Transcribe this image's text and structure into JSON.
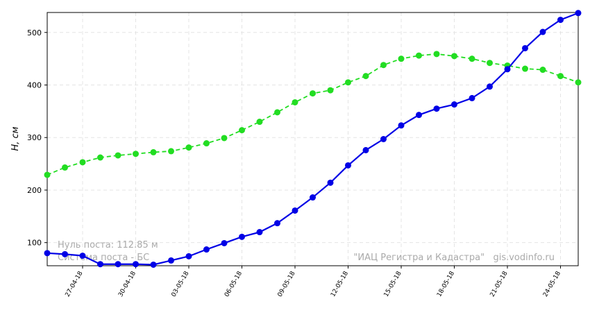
{
  "chart_data": {
    "type": "line",
    "ylabel": "H, см",
    "categories": [
      null,
      null,
      "27-04-18",
      null,
      null,
      "30-04-18",
      null,
      null,
      "03-05-18",
      null,
      null,
      "06-05-18",
      null,
      null,
      "09-05-18",
      null,
      null,
      "12-05-18",
      null,
      null,
      "15-05-18",
      null,
      null,
      "18-05-18",
      null,
      null,
      "21-05-18",
      null,
      null,
      "24-05-18",
      null
    ],
    "series": [
      {
        "color": "#0000e6",
        "dashed": false,
        "values": [
          80,
          78,
          75,
          59,
          59,
          59,
          58,
          66,
          74,
          87,
          99,
          111,
          120,
          137,
          161,
          186,
          214,
          247,
          276,
          297,
          323,
          343,
          355,
          363,
          375,
          397,
          430,
          470,
          501,
          524,
          537
        ]
      },
      {
        "color": "#22dd22",
        "dashed": true,
        "values": [
          229,
          243,
          253,
          262,
          266,
          269,
          272,
          274,
          281,
          289,
          299,
          314,
          330,
          348,
          367,
          384,
          390,
          405,
          417,
          438,
          450,
          456,
          459,
          455,
          450,
          442,
          437,
          431,
          429,
          417,
          405
        ]
      }
    ],
    "ylim": [
      56,
      538
    ],
    "yticks": [
      100,
      200,
      300,
      400,
      500
    ],
    "grid": true,
    "annotations": [
      "Нуль поста: 112.85 м",
      "Система поста - БС",
      "\"ИАЦ Регистра и Кадастра\"   gis.vodinfo.ru"
    ]
  }
}
